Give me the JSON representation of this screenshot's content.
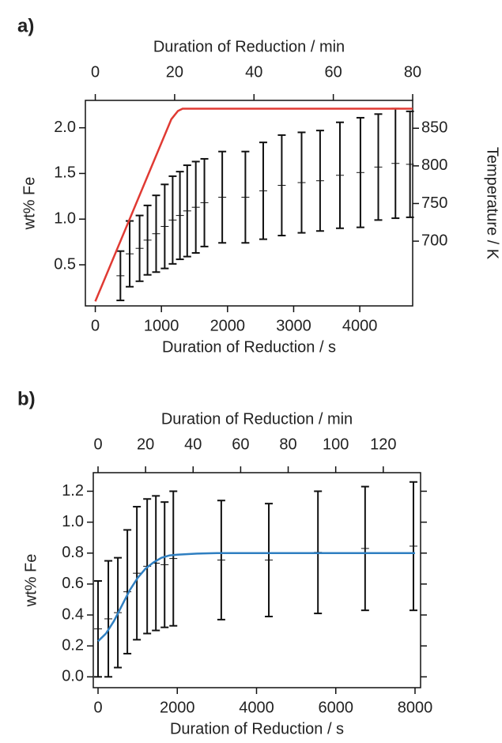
{
  "chart_data": [
    {
      "type": "errorbar",
      "title": "a)",
      "xlabel": "Duration of Reduction / s",
      "x2label": "Duration of Reduction / min",
      "ylabel": "wt% Fe",
      "y2label": "Temperature / K",
      "xlim": [
        -150,
        4800
      ],
      "xticks": [
        0,
        1000,
        2000,
        3000,
        4000
      ],
      "x2lim": [
        -2.5,
        80
      ],
      "x2ticks": [
        0,
        20,
        40,
        60,
        80
      ],
      "ylim": [
        0.05,
        2.3
      ],
      "yticks": [
        0.5,
        {
          "value": 1,
          "label": "1.0"
        },
        1.5,
        {
          "value": 2,
          "label": "2.0"
        }
      ],
      "y2lim": [
        614,
        887
      ],
      "y2ticks": [
        700,
        750,
        800,
        850
      ],
      "mirror_ticks": false,
      "series": [
        {
          "type": "errorbar",
          "color": "#111111",
          "x": [
            380,
            520,
            670,
            790,
            920,
            1050,
            1170,
            1280,
            1390,
            1520,
            1650,
            1920,
            2270,
            2540,
            2820,
            3120,
            3400,
            3700,
            4010,
            4280,
            4540,
            4760
          ],
          "values": [
            0.38,
            0.62,
            0.68,
            0.77,
            0.84,
            0.92,
            0.99,
            1.04,
            1.09,
            1.13,
            1.18,
            1.24,
            1.24,
            1.31,
            1.37,
            1.4,
            1.42,
            1.48,
            1.51,
            1.57,
            1.61,
            1.6
          ],
          "errors": [
            0.27,
            0.36,
            0.36,
            0.38,
            0.42,
            0.46,
            0.48,
            0.48,
            0.5,
            0.5,
            0.48,
            0.5,
            0.5,
            0.53,
            0.55,
            0.55,
            0.55,
            0.58,
            0.6,
            0.58,
            0.6,
            0.58
          ]
        },
        {
          "type": "line",
          "color": "#e03a33",
          "axis": "y2",
          "x": [
            0,
            1150,
            1250,
            1320,
            2000,
            3000,
            4000,
            4800
          ],
          "values": [
            620,
            862,
            873,
            876,
            876,
            876,
            876,
            876
          ]
        }
      ]
    },
    {
      "type": "errorbar",
      "title": "b)",
      "xlabel": "Duration of Reduction / s",
      "x2label": "Duration of Reduction / min",
      "ylabel": "wt% Fe",
      "xlim": [
        -120,
        8140
      ],
      "xticks": [
        0,
        2000,
        4000,
        6000,
        8000
      ],
      "x2lim": [
        -2,
        135.7
      ],
      "x2ticks": [
        0,
        20,
        40,
        60,
        80,
        100,
        120
      ],
      "ylim": [
        -0.07,
        1.32
      ],
      "yticks": [
        {
          "value": 0,
          "label": "0.0"
        },
        0.2,
        0.4,
        0.6,
        0.8,
        {
          "value": 1,
          "label": "1.0"
        },
        1.2
      ],
      "mirror_ticks": true,
      "series": [
        {
          "type": "errorbar",
          "color": "#111111",
          "x": [
            0,
            260,
            500,
            740,
            980,
            1240,
            1460,
            1680,
            1900,
            3110,
            4310,
            5550,
            6740,
            7960
          ],
          "values": [
            0.31,
            0.375,
            0.415,
            0.55,
            0.67,
            0.715,
            0.735,
            0.725,
            0.765,
            0.755,
            0.755,
            0.805,
            0.83,
            0.845
          ],
          "errors": [
            0.31,
            0.375,
            0.355,
            0.4,
            0.43,
            0.435,
            0.435,
            0.405,
            0.435,
            0.385,
            0.365,
            0.395,
            0.4,
            0.415
          ]
        },
        {
          "type": "line",
          "color": "#2f7fc1",
          "x": [
            0,
            200,
            400,
            600,
            800,
            1000,
            1200,
            1400,
            1600,
            1800,
            2000,
            2500,
            3000,
            8000
          ],
          "values": [
            0.23,
            0.28,
            0.36,
            0.46,
            0.56,
            0.64,
            0.7,
            0.74,
            0.77,
            0.785,
            0.79,
            0.797,
            0.8,
            0.8
          ]
        }
      ]
    }
  ]
}
